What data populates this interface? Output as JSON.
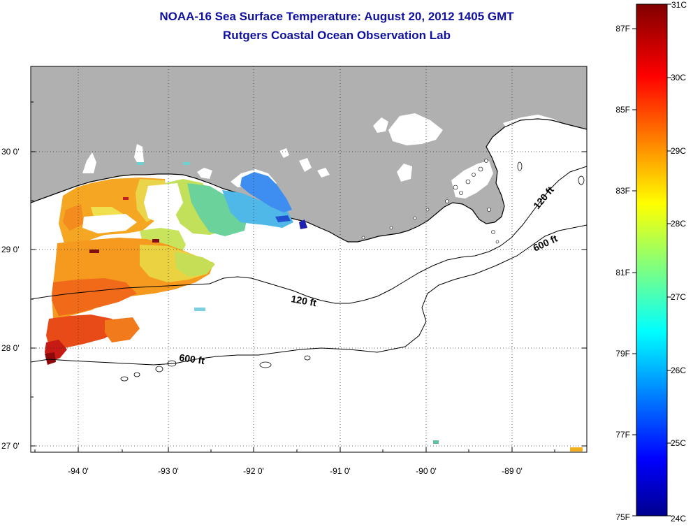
{
  "title_line1": "NOAA-16 Sea Surface Temperature:  August 20, 2012 1405 GMT",
  "title_line2": "Rutgers Coastal Ocean Observation Lab",
  "map": {
    "lon_ticks": [
      "-94 0'",
      "-93 0'",
      "-92 0'",
      "-91 0'",
      "-90 0'",
      "-89 0'"
    ],
    "lat_ticks": [
      "30 0'",
      "29 0'",
      "28 0'",
      "27 0'"
    ],
    "contour_labels": {
      "c120_mid": "120 ft",
      "c120_east": "120 ft",
      "c600_west": "600 ft",
      "c600_east": "600 ft"
    },
    "colors": {
      "land": "#b0b0b0",
      "coastline": "#000000"
    }
  },
  "colorbar": {
    "fahrenheit": [
      "87F",
      "85F",
      "83F",
      "81F",
      "79F",
      "77F",
      "75F"
    ],
    "celsius": [
      "31C",
      "30C",
      "29C",
      "28C",
      "27C",
      "26C",
      "25C",
      "24C"
    ],
    "colormap": "jet"
  }
}
